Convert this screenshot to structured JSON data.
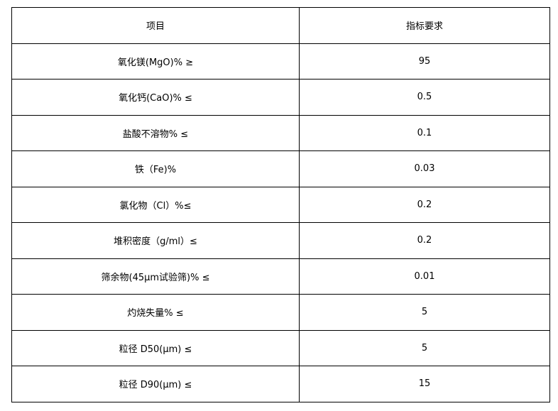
{
  "table": {
    "headers": [
      "项目",
      "指标要求"
    ],
    "rows": [
      [
        "氧化镁(MgO)% ≥",
        "95"
      ],
      [
        "氧化钙(CaO)% ≤",
        "0.5"
      ],
      [
        "盐酸不溶物% ≤",
        "0.1"
      ],
      [
        "铁（Fe)%",
        "0.03"
      ],
      [
        "氯化物（Cl）%≤",
        "0.2"
      ],
      [
        "堆积密度（g/ml）≤",
        "0.2"
      ],
      [
        "筛余物(45μm试验筛)% ≤",
        "0.01"
      ],
      [
        "灼烧失量% ≤",
        "5"
      ],
      [
        "粒径 D50(μm) ≤",
        "5"
      ],
      [
        "粒径 D90(μm) ≤",
        "15"
      ]
    ]
  }
}
